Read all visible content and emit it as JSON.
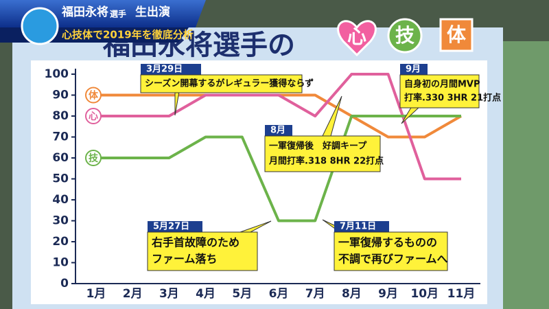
{
  "header": {
    "name": "福田永将",
    "suffix": "選手",
    "live": "生出演",
    "subtitle": "心技体で2019年を徹底分析",
    "title": "福田永将選手の",
    "icons": [
      "心",
      "技",
      "体"
    ]
  },
  "chart_data": {
    "type": "line",
    "categories": [
      "1月",
      "2月",
      "3月",
      "4月",
      "5月",
      "6月",
      "7月",
      "8月",
      "9月",
      "10月",
      "11月"
    ],
    "series": [
      {
        "name": "体",
        "color": "#f0893a",
        "values": [
          90,
          90,
          90,
          90,
          90,
          90,
          90,
          80,
          70,
          70,
          80
        ]
      },
      {
        "name": "心",
        "color": "#e0609c",
        "values": [
          80,
          80,
          80,
          90,
          90,
          90,
          80,
          100,
          100,
          50,
          50
        ]
      },
      {
        "name": "技",
        "color": "#6cb34a",
        "values": [
          60,
          60,
          60,
          70,
          70,
          30,
          30,
          80,
          80,
          80,
          80
        ]
      }
    ],
    "ylim": [
      0,
      100
    ],
    "yticks": [
      0,
      10,
      20,
      30,
      40,
      50,
      60,
      70,
      80,
      90,
      100
    ],
    "annotations": [
      {
        "date": "3月29日",
        "lines": [
          "シーズン開幕するがレギュラー獲得ならず"
        ]
      },
      {
        "date": "9月",
        "lines": [
          "自身初の月間MVP",
          "打率.330 3HR 21打点"
        ]
      },
      {
        "date": "8月",
        "lines": [
          "一軍復帰後　好調キープ",
          "月間打率.318 8HR 22打点"
        ]
      },
      {
        "date": "5月27日",
        "lines": [
          "右手首故障のため",
          "ファーム落ち"
        ]
      },
      {
        "date": "7月11日",
        "lines": [
          "一軍復帰するものの",
          "不調で再びファームへ"
        ]
      }
    ]
  }
}
